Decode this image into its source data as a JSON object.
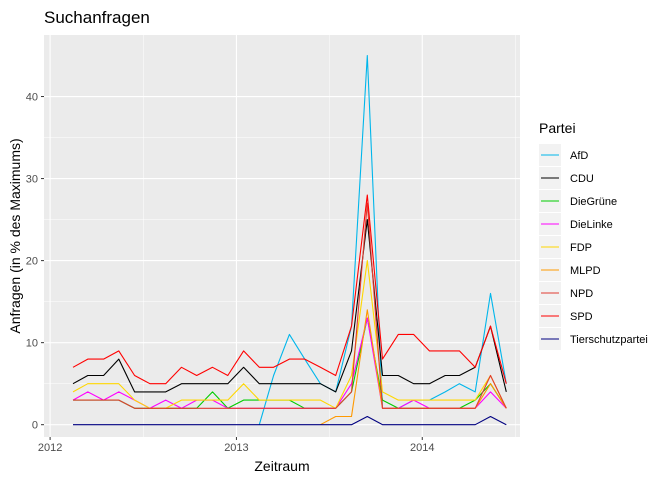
{
  "chart_data": {
    "type": "line",
    "title": "Suchanfragen",
    "xlabel": "Zeitraum",
    "ylabel": "Anfragen (in % des Maximums)",
    "x_unit": "month",
    "x": [
      "2012-02",
      "2012-03",
      "2012-04",
      "2012-05",
      "2012-06",
      "2012-07",
      "2012-08",
      "2012-09",
      "2012-10",
      "2012-11",
      "2012-12",
      "2013-01",
      "2013-02",
      "2013-03",
      "2013-04",
      "2013-05",
      "2013-06",
      "2013-07",
      "2013-08",
      "2013-09",
      "2013-10",
      "2013-11",
      "2013-12",
      "2014-01",
      "2014-02",
      "2014-03",
      "2014-04",
      "2014-05",
      "2014-06"
    ],
    "x_ticks": [
      {
        "value": "2012-01",
        "label": "2012"
      },
      {
        "value": "2013-01",
        "label": "2013"
      },
      {
        "value": "2014-01",
        "label": "2014"
      }
    ],
    "xlim": [
      "2011-12-20",
      "2014-07-12"
    ],
    "ylim": [
      -1.5,
      47.5
    ],
    "y_ticks": [
      0,
      10,
      20,
      30,
      40
    ],
    "grid": true,
    "legend": {
      "title": "Partei",
      "position": "right"
    },
    "series": [
      {
        "name": "AfD",
        "color": "#00b6eb",
        "values": [
          null,
          null,
          null,
          null,
          null,
          null,
          null,
          null,
          null,
          null,
          null,
          null,
          0,
          6,
          11,
          8,
          5,
          4,
          12,
          45,
          2,
          2,
          3,
          3,
          4,
          5,
          4,
          16,
          5
        ]
      },
      {
        "name": "CDU",
        "color": "#000000",
        "values": [
          5,
          6,
          6,
          8,
          4,
          4,
          4,
          5,
          5,
          5,
          5,
          7,
          5,
          5,
          5,
          5,
          5,
          4,
          9,
          25,
          6,
          6,
          5,
          5,
          6,
          6,
          7,
          12,
          4
        ]
      },
      {
        "name": "DieGrüne",
        "color": "#00cc00",
        "values": [
          3,
          3,
          3,
          3,
          2,
          2,
          2,
          2,
          2,
          4,
          2,
          3,
          3,
          3,
          3,
          2,
          2,
          2,
          4,
          13,
          3,
          2,
          2,
          2,
          2,
          2,
          3,
          5,
          2
        ]
      },
      {
        "name": "DieLinke",
        "color": "#ff00ff",
        "values": [
          3,
          4,
          3,
          4,
          3,
          2,
          3,
          2,
          3,
          3,
          2,
          2,
          2,
          2,
          2,
          2,
          2,
          2,
          5,
          13,
          2,
          2,
          3,
          2,
          2,
          2,
          2,
          4,
          2
        ]
      },
      {
        "name": "FDP",
        "color": "#ffd700",
        "values": [
          4,
          5,
          5,
          5,
          3,
          2,
          2,
          3,
          3,
          3,
          3,
          5,
          3,
          3,
          3,
          3,
          3,
          2,
          6,
          20,
          4,
          3,
          3,
          3,
          3,
          3,
          3,
          6,
          2
        ]
      },
      {
        "name": "MLPD",
        "color": "#ff9900",
        "values": [
          null,
          null,
          null,
          null,
          null,
          null,
          null,
          null,
          null,
          null,
          null,
          null,
          null,
          null,
          null,
          null,
          0,
          1,
          1,
          14,
          2,
          2,
          2,
          2,
          2,
          2,
          2,
          5,
          2
        ]
      },
      {
        "name": "NPD",
        "color": "#e03c31",
        "values": [
          3,
          3,
          3,
          3,
          2,
          2,
          2,
          2,
          2,
          2,
          2,
          2,
          2,
          2,
          2,
          2,
          2,
          2,
          4,
          27,
          2,
          2,
          2,
          2,
          2,
          2,
          2,
          6,
          2
        ]
      },
      {
        "name": "SPD",
        "color": "#ff0000",
        "values": [
          7,
          8,
          8,
          9,
          6,
          5,
          5,
          7,
          6,
          7,
          6,
          9,
          7,
          7,
          8,
          8,
          7,
          6,
          12,
          28,
          8,
          11,
          11,
          9,
          9,
          9,
          7,
          12,
          5
        ]
      },
      {
        "name": "Tierschutzpartei",
        "color": "#000080",
        "values": [
          0,
          0,
          0,
          0,
          0,
          0,
          0,
          0,
          0,
          0,
          0,
          0,
          0,
          0,
          0,
          0,
          0,
          0,
          0,
          1,
          0,
          0,
          0,
          0,
          0,
          0,
          0,
          1,
          0
        ]
      }
    ]
  }
}
